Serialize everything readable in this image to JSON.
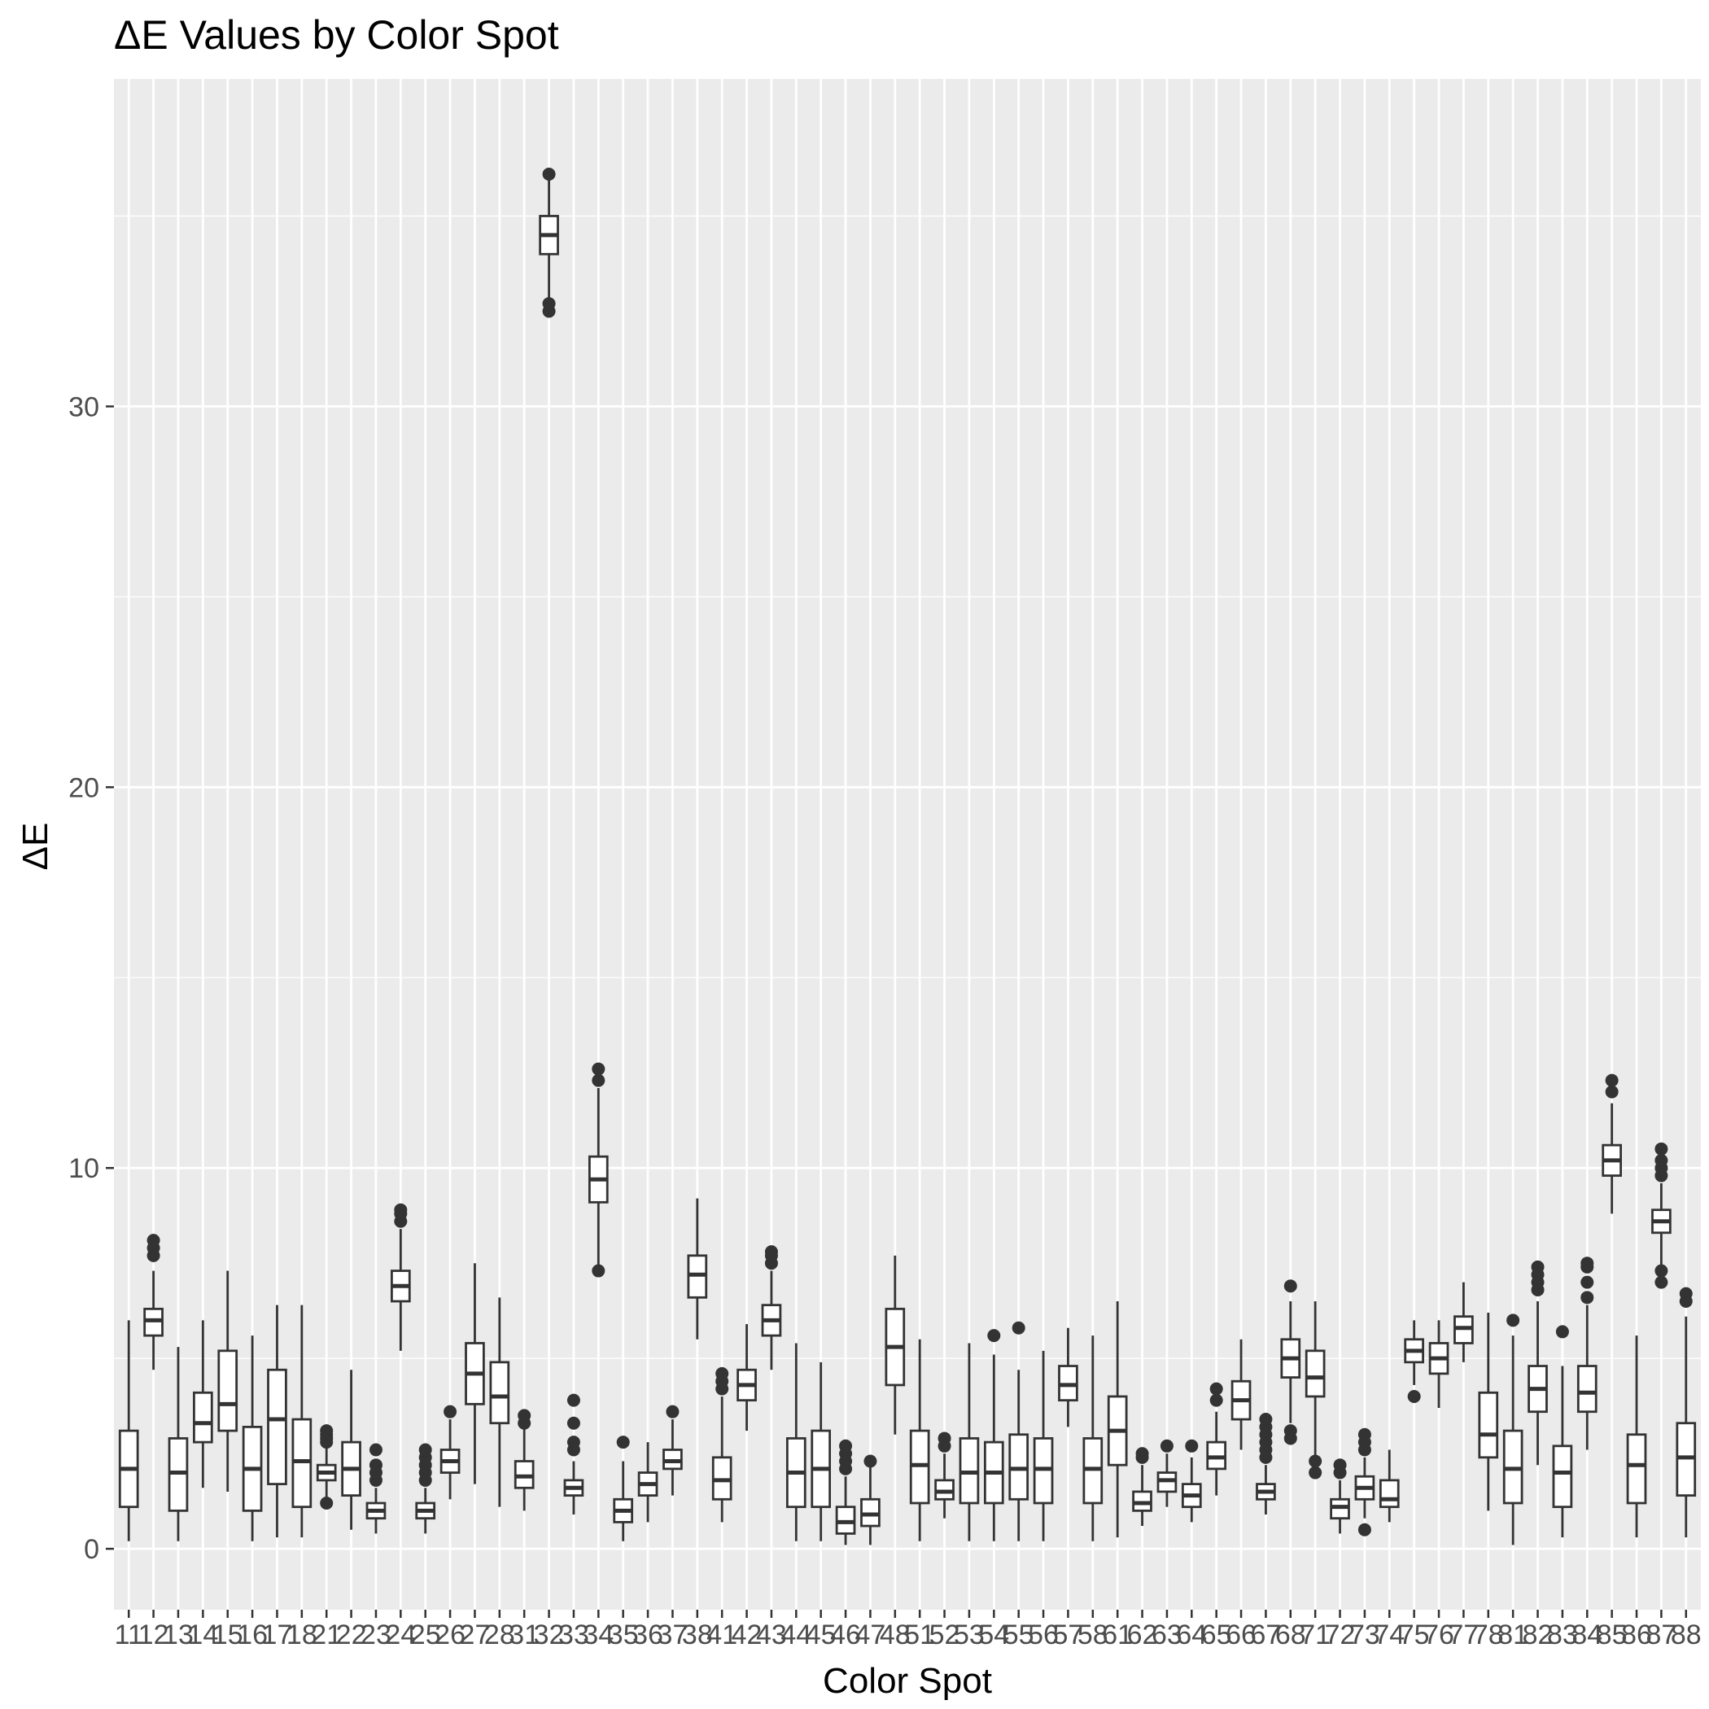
{
  "chart_data": {
    "type": "boxplot",
    "title": "ΔE Values by Color Spot",
    "xlabel": "Color Spot",
    "ylabel": "ΔE",
    "ylim": [
      -1.6,
      38.6
    ],
    "yticks": [
      0,
      10,
      20,
      30
    ],
    "grid": true,
    "legend": "none",
    "colors": {
      "panel": "#ebebeb",
      "grid": "#ffffff",
      "box": "#333333",
      "box_fill": "#ffffff",
      "axis_text": "#4d4d4d"
    },
    "categories": [
      "11",
      "12",
      "13",
      "14",
      "15",
      "16",
      "17",
      "18",
      "21",
      "22",
      "23",
      "24",
      "25",
      "26",
      "27",
      "28",
      "31",
      "32",
      "33",
      "34",
      "35",
      "36",
      "37",
      "38",
      "41",
      "42",
      "43",
      "44",
      "45",
      "46",
      "47",
      "48",
      "51",
      "52",
      "53",
      "54",
      "55",
      "56",
      "57",
      "58",
      "61",
      "62",
      "63",
      "64",
      "65",
      "66",
      "67",
      "68",
      "71",
      "72",
      "73",
      "74",
      "75",
      "76",
      "77",
      "78",
      "81",
      "82",
      "83",
      "84",
      "85",
      "86",
      "87",
      "88"
    ],
    "boxes": [
      {
        "label": "11",
        "min": 0.2,
        "q1": 1.1,
        "median": 2.1,
        "q3": 3.1,
        "max": 6.0,
        "outliers": []
      },
      {
        "label": "12",
        "min": 4.7,
        "q1": 5.6,
        "median": 6.0,
        "q3": 6.3,
        "max": 7.3,
        "outliers": [
          7.7,
          7.9,
          8.1
        ]
      },
      {
        "label": "13",
        "min": 0.2,
        "q1": 1.0,
        "median": 2.0,
        "q3": 2.9,
        "max": 5.3,
        "outliers": []
      },
      {
        "label": "14",
        "min": 1.6,
        "q1": 2.8,
        "median": 3.3,
        "q3": 4.1,
        "max": 6.0,
        "outliers": []
      },
      {
        "label": "15",
        "min": 1.5,
        "q1": 3.1,
        "median": 3.8,
        "q3": 5.2,
        "max": 7.3,
        "outliers": []
      },
      {
        "label": "16",
        "min": 0.2,
        "q1": 1.0,
        "median": 2.1,
        "q3": 3.2,
        "max": 5.6,
        "outliers": []
      },
      {
        "label": "17",
        "min": 0.3,
        "q1": 1.7,
        "median": 3.4,
        "q3": 4.7,
        "max": 6.4,
        "outliers": []
      },
      {
        "label": "18",
        "min": 0.3,
        "q1": 1.1,
        "median": 2.3,
        "q3": 3.4,
        "max": 6.4,
        "outliers": []
      },
      {
        "label": "21",
        "min": 1.2,
        "q1": 1.8,
        "median": 2.0,
        "q3": 2.2,
        "max": 2.7,
        "outliers": [
          1.2,
          2.8,
          2.9,
          3.0,
          3.1
        ]
      },
      {
        "label": "22",
        "min": 0.5,
        "q1": 1.4,
        "median": 2.1,
        "q3": 2.8,
        "max": 4.7,
        "outliers": []
      },
      {
        "label": "23",
        "min": 0.4,
        "q1": 0.8,
        "median": 1.0,
        "q3": 1.2,
        "max": 1.6,
        "outliers": [
          1.8,
          2.0,
          2.2,
          2.6
        ]
      },
      {
        "label": "24",
        "min": 5.2,
        "q1": 6.5,
        "median": 6.9,
        "q3": 7.3,
        "max": 8.4,
        "outliers": [
          8.6,
          8.8,
          8.9
        ]
      },
      {
        "label": "25",
        "min": 0.4,
        "q1": 0.8,
        "median": 1.0,
        "q3": 1.2,
        "max": 1.6,
        "outliers": [
          1.8,
          2.0,
          2.2,
          2.4,
          2.6
        ]
      },
      {
        "label": "26",
        "min": 1.3,
        "q1": 2.0,
        "median": 2.3,
        "q3": 2.6,
        "max": 3.4,
        "outliers": [
          3.6
        ]
      },
      {
        "label": "27",
        "min": 1.7,
        "q1": 3.8,
        "median": 4.6,
        "q3": 5.4,
        "max": 7.5,
        "outliers": []
      },
      {
        "label": "28",
        "min": 1.1,
        "q1": 3.3,
        "median": 4.0,
        "q3": 4.9,
        "max": 6.6,
        "outliers": []
      },
      {
        "label": "31",
        "min": 1.0,
        "q1": 1.6,
        "median": 1.9,
        "q3": 2.3,
        "max": 3.2,
        "outliers": [
          3.3,
          3.5
        ]
      },
      {
        "label": "32",
        "min": 32.6,
        "q1": 34.0,
        "median": 34.5,
        "q3": 35.0,
        "max": 36.1,
        "outliers": [
          32.5,
          32.7,
          36.1
        ]
      },
      {
        "label": "33",
        "min": 0.9,
        "q1": 1.4,
        "median": 1.6,
        "q3": 1.8,
        "max": 2.3,
        "outliers": [
          2.6,
          2.8,
          3.3,
          3.9
        ]
      },
      {
        "label": "34",
        "min": 7.4,
        "q1": 9.1,
        "median": 9.7,
        "q3": 10.3,
        "max": 12.1,
        "outliers": [
          7.3,
          12.3,
          12.6
        ]
      },
      {
        "label": "35",
        "min": 0.2,
        "q1": 0.7,
        "median": 1.0,
        "q3": 1.3,
        "max": 2.3,
        "outliers": [
          2.8
        ]
      },
      {
        "label": "36",
        "min": 0.7,
        "q1": 1.4,
        "median": 1.7,
        "q3": 2.0,
        "max": 2.8,
        "outliers": []
      },
      {
        "label": "37",
        "min": 1.4,
        "q1": 2.1,
        "median": 2.3,
        "q3": 2.6,
        "max": 3.4,
        "outliers": [
          3.6
        ]
      },
      {
        "label": "38",
        "min": 5.5,
        "q1": 6.6,
        "median": 7.2,
        "q3": 7.7,
        "max": 9.2,
        "outliers": []
      },
      {
        "label": "41",
        "min": 0.7,
        "q1": 1.3,
        "median": 1.8,
        "q3": 2.4,
        "max": 4.0,
        "outliers": [
          4.2,
          4.4,
          4.6
        ]
      },
      {
        "label": "42",
        "min": 3.1,
        "q1": 3.9,
        "median": 4.3,
        "q3": 4.7,
        "max": 5.9,
        "outliers": []
      },
      {
        "label": "43",
        "min": 4.7,
        "q1": 5.6,
        "median": 6.0,
        "q3": 6.4,
        "max": 7.3,
        "outliers": [
          7.5,
          7.7,
          7.8
        ]
      },
      {
        "label": "44",
        "min": 0.2,
        "q1": 1.1,
        "median": 2.0,
        "q3": 2.9,
        "max": 5.4,
        "outliers": []
      },
      {
        "label": "45",
        "min": 0.2,
        "q1": 1.1,
        "median": 2.1,
        "q3": 3.1,
        "max": 4.9,
        "outliers": []
      },
      {
        "label": "46",
        "min": 0.1,
        "q1": 0.4,
        "median": 0.7,
        "q3": 1.1,
        "max": 1.9,
        "outliers": [
          2.1,
          2.3,
          2.5,
          2.7
        ]
      },
      {
        "label": "47",
        "min": 0.1,
        "q1": 0.6,
        "median": 0.9,
        "q3": 1.3,
        "max": 2.2,
        "outliers": [
          2.3
        ]
      },
      {
        "label": "48",
        "min": 3.0,
        "q1": 4.3,
        "median": 5.3,
        "q3": 6.3,
        "max": 7.7,
        "outliers": []
      },
      {
        "label": "51",
        "min": 0.2,
        "q1": 1.2,
        "median": 2.2,
        "q3": 3.1,
        "max": 5.5,
        "outliers": []
      },
      {
        "label": "52",
        "min": 0.8,
        "q1": 1.3,
        "median": 1.5,
        "q3": 1.8,
        "max": 2.5,
        "outliers": [
          2.7,
          2.9
        ]
      },
      {
        "label": "53",
        "min": 0.2,
        "q1": 1.2,
        "median": 2.0,
        "q3": 2.9,
        "max": 5.4,
        "outliers": []
      },
      {
        "label": "54",
        "min": 0.2,
        "q1": 1.2,
        "median": 2.0,
        "q3": 2.8,
        "max": 5.1,
        "outliers": [
          5.6
        ]
      },
      {
        "label": "55",
        "min": 0.2,
        "q1": 1.3,
        "median": 2.1,
        "q3": 3.0,
        "max": 4.7,
        "outliers": [
          5.8
        ]
      },
      {
        "label": "56",
        "min": 0.2,
        "q1": 1.2,
        "median": 2.1,
        "q3": 2.9,
        "max": 5.2,
        "outliers": []
      },
      {
        "label": "57",
        "min": 3.2,
        "q1": 3.9,
        "median": 4.3,
        "q3": 4.8,
        "max": 5.8,
        "outliers": []
      },
      {
        "label": "58",
        "min": 0.2,
        "q1": 1.2,
        "median": 2.1,
        "q3": 2.9,
        "max": 5.6,
        "outliers": []
      },
      {
        "label": "61",
        "min": 0.3,
        "q1": 2.2,
        "median": 3.1,
        "q3": 4.0,
        "max": 6.5,
        "outliers": []
      },
      {
        "label": "62",
        "min": 0.6,
        "q1": 1.0,
        "median": 1.2,
        "q3": 1.5,
        "max": 2.2,
        "outliers": [
          2.4,
          2.5
        ]
      },
      {
        "label": "63",
        "min": 1.1,
        "q1": 1.5,
        "median": 1.8,
        "q3": 2.0,
        "max": 2.5,
        "outliers": [
          2.7
        ]
      },
      {
        "label": "64",
        "min": 0.7,
        "q1": 1.1,
        "median": 1.4,
        "q3": 1.7,
        "max": 2.4,
        "outliers": [
          2.7
        ]
      },
      {
        "label": "65",
        "min": 1.4,
        "q1": 2.1,
        "median": 2.4,
        "q3": 2.8,
        "max": 3.6,
        "outliers": [
          3.9,
          4.2
        ]
      },
      {
        "label": "66",
        "min": 2.6,
        "q1": 3.4,
        "median": 3.9,
        "q3": 4.4,
        "max": 5.5,
        "outliers": []
      },
      {
        "label": "67",
        "min": 0.9,
        "q1": 1.3,
        "median": 1.5,
        "q3": 1.7,
        "max": 2.2,
        "outliers": [
          2.4,
          2.6,
          2.8,
          3.0,
          3.2,
          3.4
        ]
      },
      {
        "label": "68",
        "min": 3.3,
        "q1": 4.5,
        "median": 5.0,
        "q3": 5.5,
        "max": 6.5,
        "outliers": [
          2.9,
          3.1,
          6.9
        ]
      },
      {
        "label": "71",
        "min": 2.4,
        "q1": 4.0,
        "median": 4.5,
        "q3": 5.2,
        "max": 6.5,
        "outliers": [
          2.0,
          2.3
        ]
      },
      {
        "label": "72",
        "min": 0.4,
        "q1": 0.8,
        "median": 1.1,
        "q3": 1.3,
        "max": 1.8,
        "outliers": [
          2.0,
          2.2
        ]
      },
      {
        "label": "73",
        "min": 0.8,
        "q1": 1.3,
        "median": 1.6,
        "q3": 1.9,
        "max": 2.4,
        "outliers": [
          0.5,
          2.6,
          2.8,
          3.0
        ]
      },
      {
        "label": "74",
        "min": 0.7,
        "q1": 1.1,
        "median": 1.3,
        "q3": 1.8,
        "max": 2.6,
        "outliers": []
      },
      {
        "label": "75",
        "min": 4.3,
        "q1": 4.9,
        "median": 5.2,
        "q3": 5.5,
        "max": 6.0,
        "outliers": [
          4.0
        ]
      },
      {
        "label": "76",
        "min": 3.7,
        "q1": 4.6,
        "median": 5.0,
        "q3": 5.4,
        "max": 6.0,
        "outliers": []
      },
      {
        "label": "77",
        "min": 4.9,
        "q1": 5.4,
        "median": 5.8,
        "q3": 6.1,
        "max": 7.0,
        "outliers": []
      },
      {
        "label": "78",
        "min": 1.0,
        "q1": 2.4,
        "median": 3.0,
        "q3": 4.1,
        "max": 6.2,
        "outliers": []
      },
      {
        "label": "81",
        "min": 0.1,
        "q1": 1.2,
        "median": 2.1,
        "q3": 3.1,
        "max": 5.6,
        "outliers": [
          6.0
        ]
      },
      {
        "label": "82",
        "min": 2.2,
        "q1": 3.6,
        "median": 4.2,
        "q3": 4.8,
        "max": 6.5,
        "outliers": [
          6.8,
          7.0,
          7.2,
          7.4
        ]
      },
      {
        "label": "83",
        "min": 0.3,
        "q1": 1.1,
        "median": 2.0,
        "q3": 2.7,
        "max": 4.8,
        "outliers": [
          5.7
        ]
      },
      {
        "label": "84",
        "min": 2.6,
        "q1": 3.6,
        "median": 4.1,
        "q3": 4.8,
        "max": 6.4,
        "outliers": [
          6.6,
          7.0,
          7.4,
          7.5
        ]
      },
      {
        "label": "85",
        "min": 8.8,
        "q1": 9.8,
        "median": 10.2,
        "q3": 10.6,
        "max": 11.7,
        "outliers": [
          12.0,
          12.3
        ]
      },
      {
        "label": "86",
        "min": 0.3,
        "q1": 1.2,
        "median": 2.2,
        "q3": 3.0,
        "max": 5.6,
        "outliers": []
      },
      {
        "label": "87",
        "min": 7.3,
        "q1": 8.3,
        "median": 8.6,
        "q3": 8.9,
        "max": 9.6,
        "outliers": [
          7.0,
          7.3,
          9.8,
          10.0,
          10.2,
          10.5
        ]
      },
      {
        "label": "88",
        "min": 0.3,
        "q1": 1.4,
        "median": 2.4,
        "q3": 3.3,
        "max": 6.1,
        "outliers": [
          6.5,
          6.7
        ]
      }
    ]
  }
}
